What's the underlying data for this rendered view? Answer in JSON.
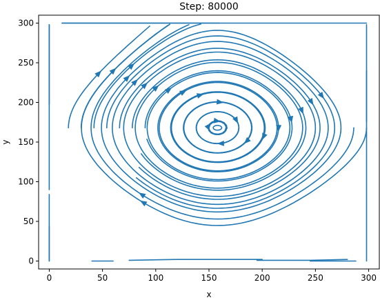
{
  "chart_data": {
    "type": "streamplot",
    "title": "Step: 80000",
    "xlabel": "x",
    "ylabel": "y",
    "xlim": [
      -10,
      310
    ],
    "ylim": [
      -10,
      310
    ],
    "xticks": [
      0,
      50,
      100,
      150,
      200,
      250,
      300
    ],
    "yticks": [
      0,
      50,
      100,
      150,
      200,
      250,
      300
    ],
    "grid": false,
    "series_color": "#1f77b4",
    "vortex_center": [
      158,
      168
    ],
    "flow_direction": "clockwise",
    "lid_velocity": "top boundary flows in +x direction",
    "field": "lid-driven cavity flow streamlines"
  },
  "colors": {
    "stream": "#1f77b4",
    "axes": "#000000",
    "background": "#ffffff"
  }
}
